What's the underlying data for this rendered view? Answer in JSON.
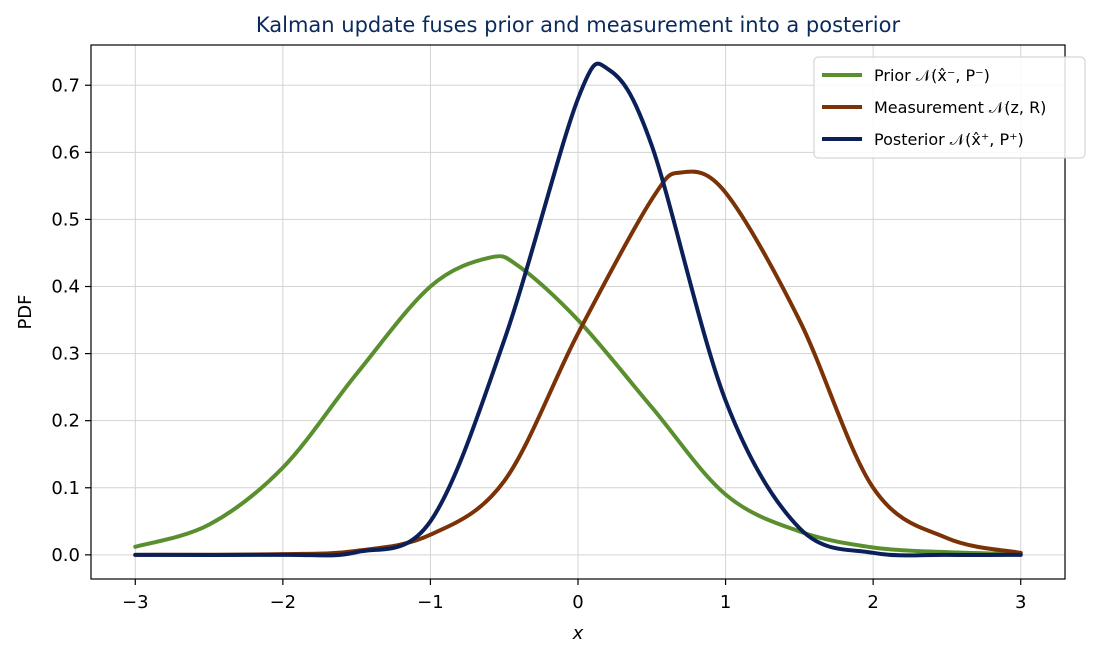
{
  "chart_data": {
    "type": "line",
    "title": "Kalman update fuses prior and measurement into a posterior",
    "title_color": "#0b2a5c",
    "xlabel": "x",
    "ylabel": "PDF",
    "xlim": [
      -3.3,
      3.3
    ],
    "ylim": [
      -0.036,
      0.76
    ],
    "x_ticks": [
      -3,
      -2,
      -1,
      0,
      1,
      2,
      3
    ],
    "x_tick_labels": [
      "−3",
      "−2",
      "−1",
      "0",
      "1",
      "2",
      "3"
    ],
    "y_ticks": [
      0.0,
      0.1,
      0.2,
      0.3,
      0.4,
      0.5,
      0.6,
      0.7
    ],
    "y_tick_labels": [
      "0.0",
      "0.1",
      "0.2",
      "0.3",
      "0.4",
      "0.5",
      "0.6",
      "0.7"
    ],
    "grid": true,
    "legend_position": "top-right",
    "series": [
      {
        "name": "Prior 𝒩(x̂⁻, P⁻)",
        "color": "#5a8f2f",
        "x": [
          -3.0,
          -2.5,
          -2.0,
          -1.5,
          -1.0,
          -0.6,
          -0.4,
          0.0,
          0.5,
          1.0,
          1.5,
          2.0,
          2.5,
          3.0
        ],
        "values": [
          0.012,
          0.045,
          0.13,
          0.27,
          0.4,
          0.443,
          0.43,
          0.35,
          0.22,
          0.09,
          0.035,
          0.011,
          0.004,
          0.001
        ]
      },
      {
        "name": "Measurement 𝒩(z, R)",
        "color": "#7a3206",
        "x": [
          -3.0,
          -2.0,
          -1.5,
          -1.0,
          -0.5,
          0.0,
          0.5,
          0.7,
          1.0,
          1.5,
          2.0,
          2.5,
          3.0
        ],
        "values": [
          0.0,
          0.001,
          0.006,
          0.03,
          0.11,
          0.33,
          0.53,
          0.57,
          0.54,
          0.35,
          0.1,
          0.025,
          0.003
        ]
      },
      {
        "name": "Posterior 𝒩(x̂⁺, P⁺)",
        "color": "#0b2059",
        "x": [
          -3.0,
          -2.0,
          -1.5,
          -1.0,
          -0.5,
          0.0,
          0.21,
          0.5,
          1.0,
          1.5,
          2.0,
          2.5,
          3.0
        ],
        "values": [
          0.0,
          0.0,
          0.004,
          0.05,
          0.32,
          0.68,
          0.723,
          0.61,
          0.23,
          0.04,
          0.003,
          0.0,
          0.0
        ]
      }
    ]
  }
}
